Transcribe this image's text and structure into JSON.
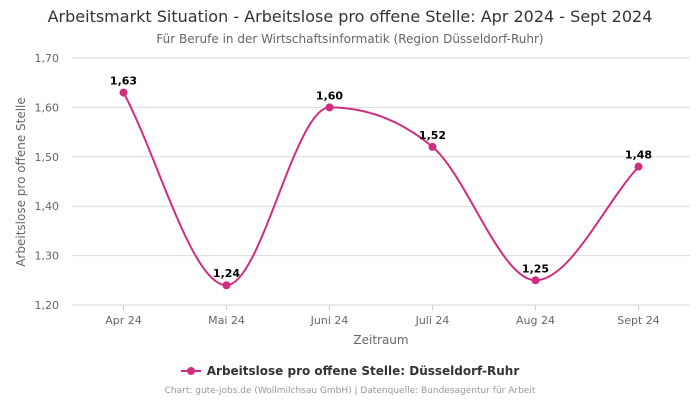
{
  "colors": {
    "series": "#d12d7f",
    "grid": "#d9d9d9",
    "text": "#333333",
    "muted": "#666666"
  },
  "legend_label": "Arbeitslose pro offene Stelle: Düsseldorf-Ruhr",
  "credits": "Chart: gute-jobs.de (Wollmilchsau GmbH) | Datenquelle: Bundesagentur für Arbeit",
  "chart_data": {
    "type": "line",
    "title": "Arbeitsmarkt Situation - Arbeitslose pro offene Stelle: Apr 2024 - Sept 2024",
    "subtitle": "Für Berufe in der Wirtschaftsinformatik (Region Düsseldorf-Ruhr)",
    "xlabel": "Zeitraum",
    "ylabel": "Arbeitslose pro offene Stelle",
    "categories": [
      "Apr 24",
      "Mai 24",
      "Juni 24",
      "Juli 24",
      "Aug 24",
      "Sept 24"
    ],
    "series": [
      {
        "name": "Arbeitslose pro offene Stelle: Düsseldorf-Ruhr",
        "values": [
          1.63,
          1.24,
          1.6,
          1.52,
          1.25,
          1.48
        ],
        "labels": [
          "1,63",
          "1,24",
          "1,60",
          "1,52",
          "1,25",
          "1,48"
        ]
      }
    ],
    "ylim": [
      1.2,
      1.7
    ],
    "yticks": [
      1.2,
      1.3,
      1.4,
      1.5,
      1.6,
      1.7
    ],
    "ytick_labels": [
      "1,20",
      "1,30",
      "1,40",
      "1,50",
      "1,60",
      "1,70"
    ],
    "grid": true,
    "legend_position": "bottom",
    "smooth": true
  }
}
